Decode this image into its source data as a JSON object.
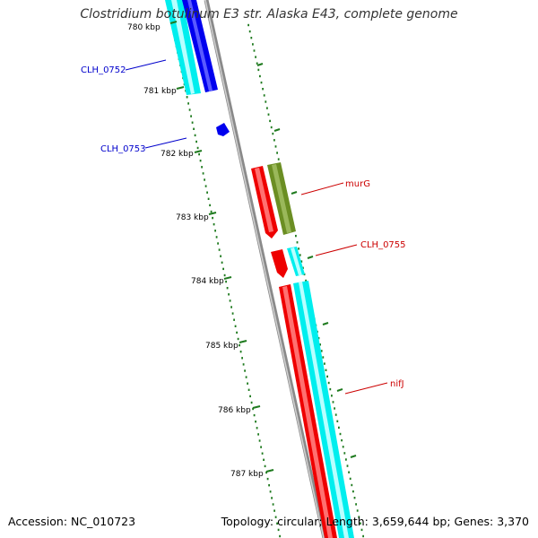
{
  "title": "Clostridium botulinum E3 str. Alaska E43, complete genome",
  "footer": {
    "accession": "Accession: NC_010723",
    "summary": "Topology: circular; Length: 3,659,644 bp; Genes: 3,370"
  },
  "colors": {
    "backbone": "#8a8a8a",
    "tick": "#1e7a1e",
    "blue": "#0000ee",
    "cyan": "#00eeee",
    "red": "#ee0000",
    "olive": "#6b8e23",
    "blue_label": "#0000cc",
    "red_label": "#cc0000"
  },
  "ticks": [
    {
      "label": "780 kbp"
    },
    {
      "label": "781 kbp"
    },
    {
      "label": "782 kbp"
    },
    {
      "label": "783 kbp"
    },
    {
      "label": "784 kbp"
    },
    {
      "label": "785 kbp"
    },
    {
      "label": "786 kbp"
    },
    {
      "label": "787 kbp"
    }
  ],
  "gene_labels": [
    {
      "name": "CLH_0752",
      "color": "blue"
    },
    {
      "name": "CLH_0753",
      "color": "blue"
    },
    {
      "name": "murG",
      "color": "red"
    },
    {
      "name": "CLH_0755",
      "color": "red"
    },
    {
      "name": "nifJ",
      "color": "red"
    }
  ]
}
